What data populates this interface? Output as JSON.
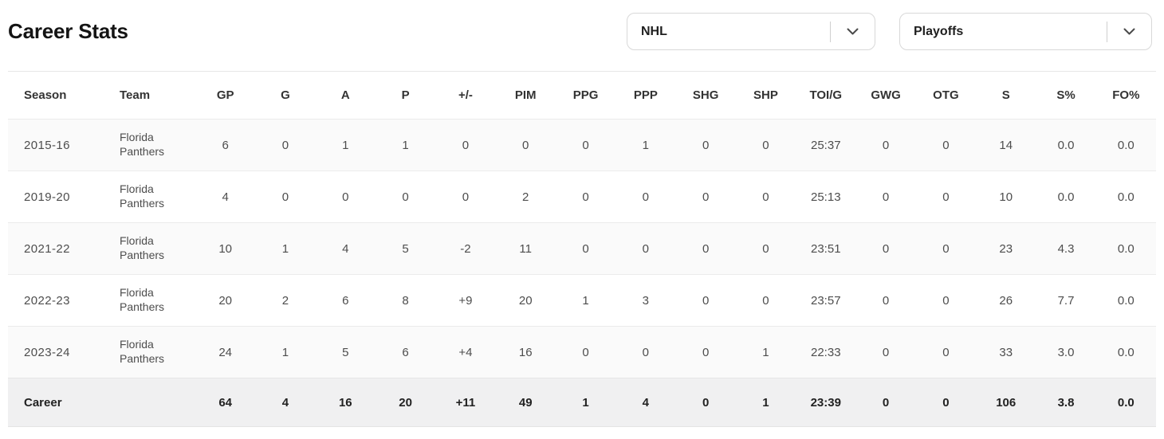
{
  "header": {
    "title": "Career Stats",
    "league_filter": {
      "value": "NHL"
    },
    "season_type_filter": {
      "value": "Playoffs"
    }
  },
  "table": {
    "columns": [
      "Season",
      "Team",
      "GP",
      "G",
      "A",
      "P",
      "+/-",
      "PIM",
      "PPG",
      "PPP",
      "SHG",
      "SHP",
      "TOI/G",
      "GWG",
      "OTG",
      "S",
      "S%",
      "FO%"
    ],
    "rows": [
      {
        "season": "2015-16",
        "team": "Florida Panthers",
        "stats": [
          "6",
          "0",
          "1",
          "1",
          "0",
          "0",
          "0",
          "1",
          "0",
          "0",
          "25:37",
          "0",
          "0",
          "14",
          "0.0",
          "0.0"
        ]
      },
      {
        "season": "2019-20",
        "team": "Florida Panthers",
        "stats": [
          "4",
          "0",
          "0",
          "0",
          "0",
          "2",
          "0",
          "0",
          "0",
          "0",
          "25:13",
          "0",
          "0",
          "10",
          "0.0",
          "0.0"
        ]
      },
      {
        "season": "2021-22",
        "team": "Florida Panthers",
        "stats": [
          "10",
          "1",
          "4",
          "5",
          "-2",
          "11",
          "0",
          "0",
          "0",
          "0",
          "23:51",
          "0",
          "0",
          "23",
          "4.3",
          "0.0"
        ]
      },
      {
        "season": "2022-23",
        "team": "Florida Panthers",
        "stats": [
          "20",
          "2",
          "6",
          "8",
          "+9",
          "20",
          "1",
          "3",
          "0",
          "0",
          "23:57",
          "0",
          "0",
          "26",
          "7.7",
          "0.0"
        ]
      },
      {
        "season": "2023-24",
        "team": "Florida Panthers",
        "stats": [
          "24",
          "1",
          "5",
          "6",
          "+4",
          "16",
          "0",
          "0",
          "0",
          "1",
          "22:33",
          "0",
          "0",
          "33",
          "3.0",
          "0.0"
        ]
      }
    ],
    "career_row": {
      "label": "Career",
      "team": "",
      "stats": [
        "64",
        "4",
        "16",
        "20",
        "+11",
        "49",
        "1",
        "4",
        "0",
        "1",
        "23:39",
        "0",
        "0",
        "106",
        "3.8",
        "0.0"
      ]
    }
  },
  "colors": {
    "title_text": "#141414",
    "header_text": "#333333",
    "cell_text": "#4d4d4d",
    "row_alt_bg": "#fafafa",
    "career_row_bg": "#f0f0f1",
    "divider": "#e6e6e6",
    "dropdown_border": "#d8d8d8"
  }
}
